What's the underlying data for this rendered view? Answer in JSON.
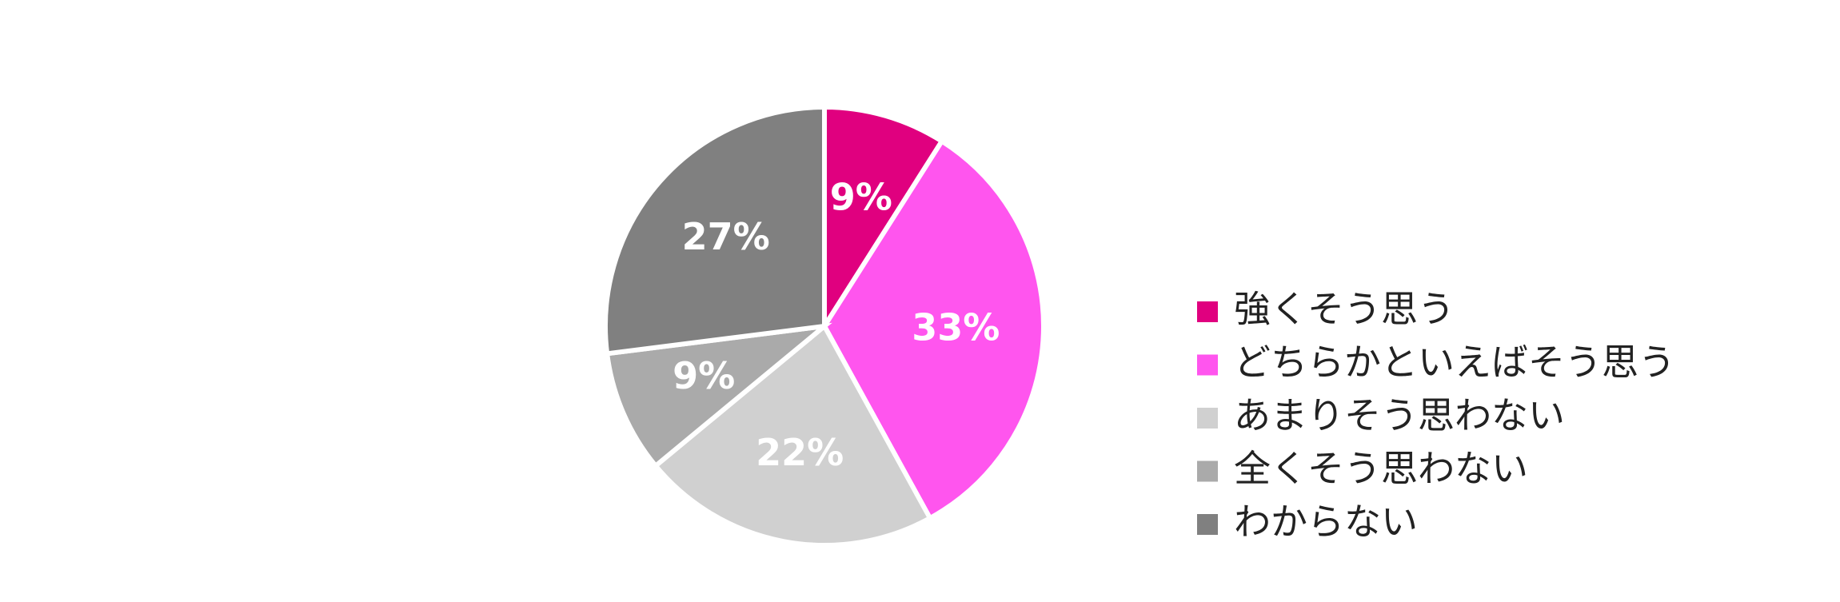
{
  "chart_data": {
    "type": "pie",
    "categories": [
      "強くそう思う",
      "どちらかといえばそう思う",
      "あまりそう思わない",
      "全くそう思わない",
      "わからない"
    ],
    "values": [
      9,
      33,
      22,
      9,
      27
    ],
    "value_labels": [
      "9%",
      "33%",
      "22%",
      "9%",
      "27%"
    ],
    "colors": [
      "#e0007f",
      "#ff55ee",
      "#d0d0d0",
      "#aaaaaa",
      "#808080"
    ],
    "legend": "right"
  }
}
